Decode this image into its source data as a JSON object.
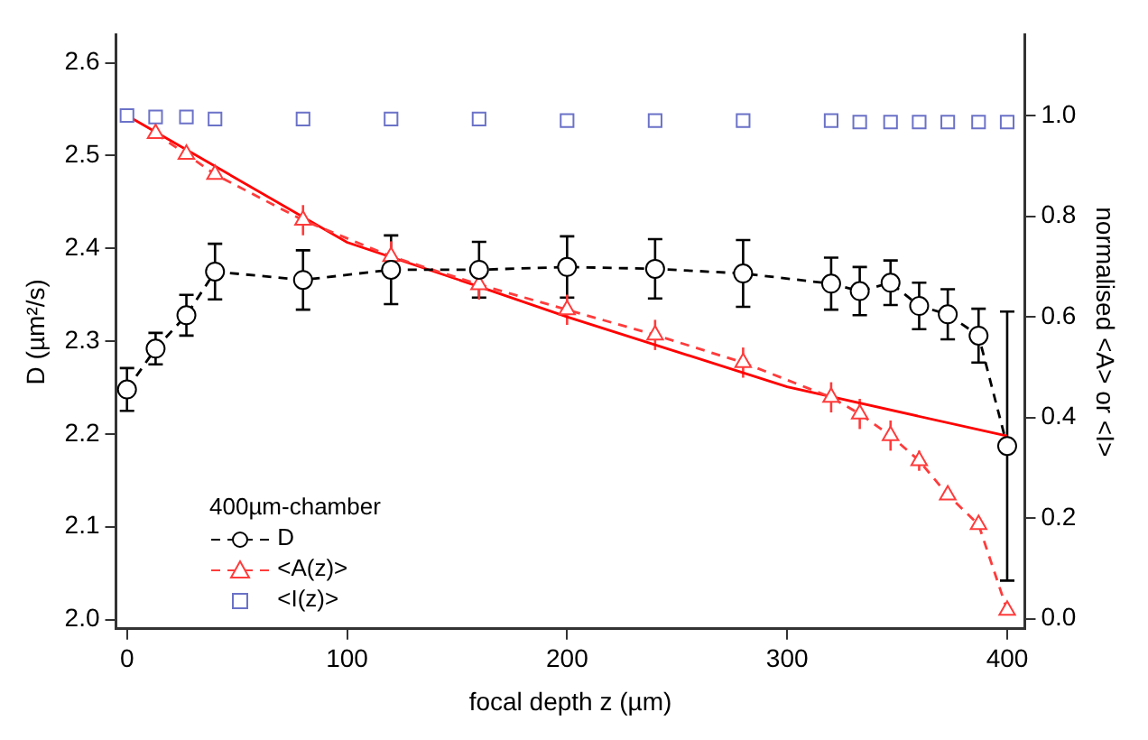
{
  "chart_data": {
    "type": "line",
    "xlabel": "focal depth z (µm)",
    "ylabel": "D (µm²/s)",
    "y2label": "normalised <A> or <I>",
    "legend_title": "400µm-chamber",
    "legend": "bottom left",
    "grid": false,
    "xlim": [
      -5,
      408
    ],
    "xticks": [
      0,
      100,
      200,
      300,
      400
    ],
    "ylim": [
      1.99,
      2.63
    ],
    "yticks": [
      {
        "value": 2,
        "label": "2.0"
      },
      2.1,
      2.2,
      2.3,
      2.4,
      2.5,
      2.6
    ],
    "y2lim": [
      -0.02,
      1.16
    ],
    "y2ticks": [
      {
        "value": 0,
        "label": "0.0"
      },
      0.2,
      0.4,
      0.6,
      0.8,
      {
        "value": 1,
        "label": "1.0"
      }
    ],
    "series": [
      {
        "name": "D",
        "color": "#000000",
        "marker": "circle",
        "line_style": "dashed",
        "x": [
          0,
          13,
          27,
          40,
          80,
          120,
          160,
          200,
          240,
          280,
          320,
          333,
          347,
          360,
          373,
          387,
          400
        ],
        "values": [
          2.248,
          2.292,
          2.328,
          2.375,
          2.366,
          2.377,
          2.377,
          2.38,
          2.378,
          2.373,
          2.362,
          2.354,
          2.363,
          2.338,
          2.329,
          2.306,
          2.187
        ],
        "errors": [
          0.023,
          0.017,
          0.022,
          0.03,
          0.032,
          0.037,
          0.03,
          0.033,
          0.032,
          0.036,
          0.028,
          0.026,
          0.024,
          0.025,
          0.027,
          0.029,
          0.145
        ]
      },
      {
        "name": "<A(z)>",
        "axis": "y2",
        "color": "#ff3b3b",
        "marker": "triangle",
        "line_style": "dashed",
        "x": [
          13,
          27,
          40,
          80,
          120,
          160,
          200,
          240,
          280,
          320,
          333,
          347,
          360,
          373,
          387,
          400
        ],
        "values": [
          0.964,
          0.923,
          0.883,
          0.792,
          0.72,
          0.664,
          0.614,
          0.564,
          0.509,
          0.44,
          0.407,
          0.364,
          0.314,
          0.246,
          0.187,
          0.017
        ],
        "errors": [
          null,
          null,
          null,
          0.03,
          0.03,
          0.03,
          0.03,
          0.03,
          0.03,
          0.03,
          0.03,
          0.03,
          0.02,
          null,
          null,
          null
        ]
      },
      {
        "name": "<I(z)>",
        "type": "scatter",
        "axis": "y2",
        "color": "#6b72c8",
        "marker": "square",
        "x": [
          0,
          13,
          27,
          40,
          80,
          120,
          160,
          200,
          240,
          280,
          320,
          333,
          347,
          360,
          373,
          387,
          400
        ],
        "values": [
          1.0,
          0.997,
          0.997,
          0.993,
          0.993,
          0.993,
          0.993,
          0.99,
          0.99,
          0.99,
          0.99,
          0.987,
          0.987,
          0.987,
          0.987,
          0.987,
          0.987
        ]
      },
      {
        "axis": "y2",
        "color": "#ff0000",
        "marker": "none",
        "line_style": "solid",
        "x": [
          0,
          100,
          160,
          200,
          300,
          400
        ],
        "values": [
          1.0,
          0.748,
          0.66,
          0.6,
          0.461,
          0.363
        ]
      }
    ]
  }
}
